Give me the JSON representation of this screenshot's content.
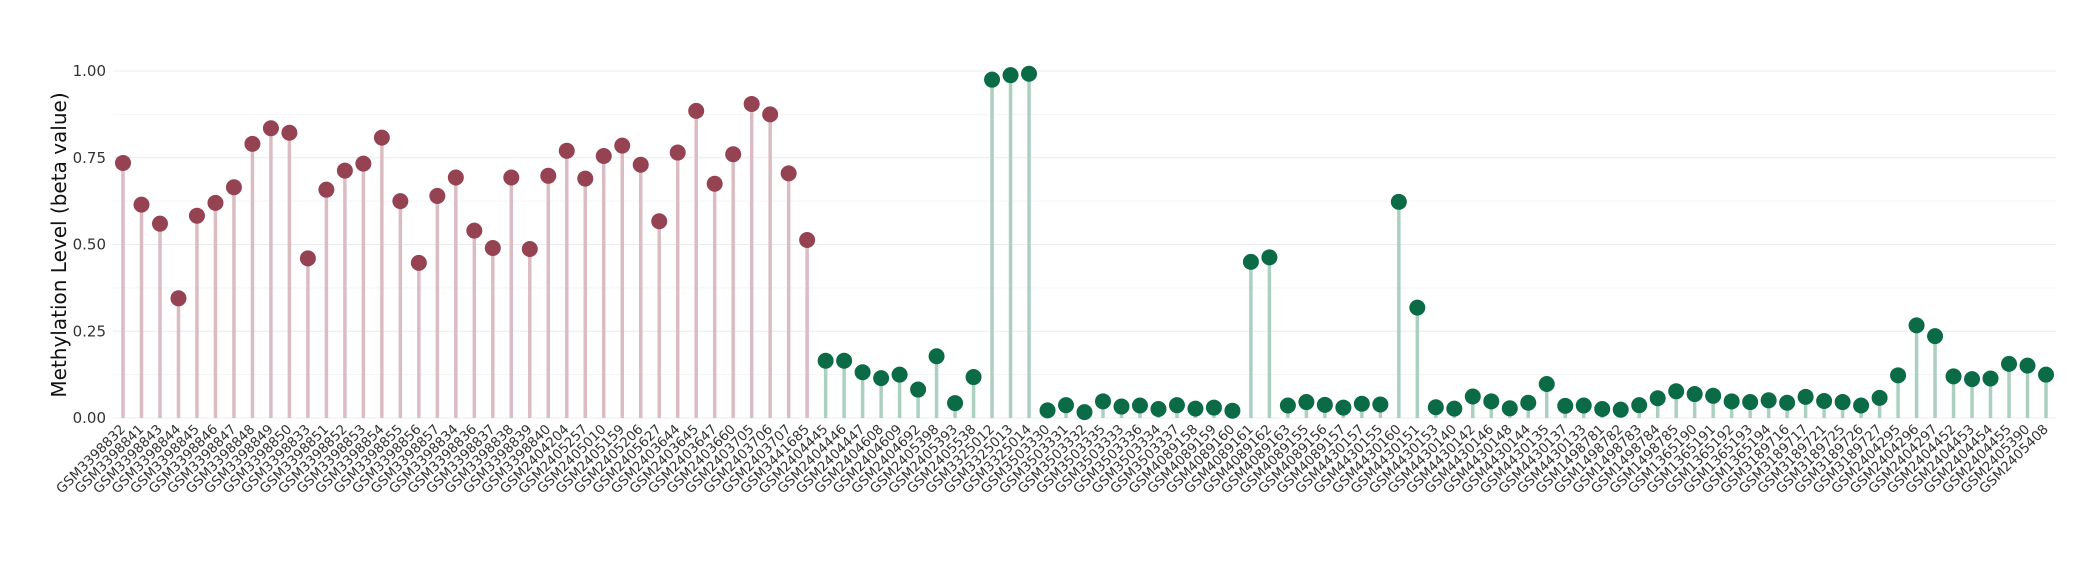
{
  "chart_data": {
    "type": "lollipop",
    "title": "",
    "xlabel": "",
    "ylabel": "Methylation Level (beta value)",
    "ylim": [
      0,
      1
    ],
    "yticks": [
      0.0,
      0.25,
      0.5,
      0.75,
      1.0
    ],
    "ytick_labels": [
      "0.00",
      "0.25",
      "0.50",
      "0.75",
      "1.00"
    ],
    "grid": true,
    "legend": "none",
    "series": [
      {
        "color": "#954253",
        "stem_color": "#dbbcc3",
        "points": [
          {
            "label": "GSM3398832",
            "value": 0.735
          },
          {
            "label": "GSM3398841",
            "value": 0.615
          },
          {
            "label": "GSM3398843",
            "value": 0.56
          },
          {
            "label": "GSM3398844",
            "value": 0.345
          },
          {
            "label": "GSM3398845",
            "value": 0.583
          },
          {
            "label": "GSM3398846",
            "value": 0.62
          },
          {
            "label": "GSM3398847",
            "value": 0.665
          },
          {
            "label": "GSM3398848",
            "value": 0.79
          },
          {
            "label": "GSM3398849",
            "value": 0.835
          },
          {
            "label": "GSM3398850",
            "value": 0.822
          },
          {
            "label": "GSM3398833",
            "value": 0.46
          },
          {
            "label": "GSM3398851",
            "value": 0.658
          },
          {
            "label": "GSM3398852",
            "value": 0.713
          },
          {
            "label": "GSM3398853",
            "value": 0.733
          },
          {
            "label": "GSM3398854",
            "value": 0.808
          },
          {
            "label": "GSM3398855",
            "value": 0.625
          },
          {
            "label": "GSM3398856",
            "value": 0.447
          },
          {
            "label": "GSM3398857",
            "value": 0.64
          },
          {
            "label": "GSM3398834",
            "value": 0.693
          },
          {
            "label": "GSM3398836",
            "value": 0.54
          },
          {
            "label": "GSM3398837",
            "value": 0.49
          },
          {
            "label": "GSM3398838",
            "value": 0.693
          },
          {
            "label": "GSM3398839",
            "value": 0.487
          },
          {
            "label": "GSM3398840",
            "value": 0.698
          },
          {
            "label": "GSM2404204",
            "value": 0.77
          },
          {
            "label": "GSM2405257",
            "value": 0.69
          },
          {
            "label": "GSM2405010",
            "value": 0.755
          },
          {
            "label": "GSM2405159",
            "value": 0.785
          },
          {
            "label": "GSM2405206",
            "value": 0.73
          },
          {
            "label": "GSM2405627",
            "value": 0.567
          },
          {
            "label": "GSM2403644",
            "value": 0.765
          },
          {
            "label": "GSM2403645",
            "value": 0.885
          },
          {
            "label": "GSM2403647",
            "value": 0.675
          },
          {
            "label": "GSM2403660",
            "value": 0.76
          },
          {
            "label": "GSM2403705",
            "value": 0.905
          },
          {
            "label": "GSM2403706",
            "value": 0.875
          },
          {
            "label": "GSM2403707",
            "value": 0.705
          },
          {
            "label": "GSM3441685",
            "value": 0.513
          }
        ]
      },
      {
        "color": "#0b6b46",
        "stem_color": "#abd0c0",
        "points": [
          {
            "label": "GSM2404445",
            "value": 0.165
          },
          {
            "label": "GSM2404446",
            "value": 0.165
          },
          {
            "label": "GSM2404447",
            "value": 0.132
          },
          {
            "label": "GSM2404608",
            "value": 0.115
          },
          {
            "label": "GSM2404609",
            "value": 0.125
          },
          {
            "label": "GSM2404692",
            "value": 0.082
          },
          {
            "label": "GSM2405398",
            "value": 0.178
          },
          {
            "label": "GSM2405393",
            "value": 0.043
          },
          {
            "label": "GSM2405538",
            "value": 0.118
          },
          {
            "label": "GSM3325012",
            "value": 0.975
          },
          {
            "label": "GSM3325013",
            "value": 0.988
          },
          {
            "label": "GSM3325014",
            "value": 0.992
          },
          {
            "label": "GSM3503330",
            "value": 0.022
          },
          {
            "label": "GSM3503331",
            "value": 0.037
          },
          {
            "label": "GSM3503332",
            "value": 0.017
          },
          {
            "label": "GSM3503335",
            "value": 0.048
          },
          {
            "label": "GSM3503333",
            "value": 0.033
          },
          {
            "label": "GSM3503336",
            "value": 0.036
          },
          {
            "label": "GSM3503334",
            "value": 0.026
          },
          {
            "label": "GSM3503337",
            "value": 0.037
          },
          {
            "label": "GSM4089158",
            "value": 0.027
          },
          {
            "label": "GSM4089159",
            "value": 0.03
          },
          {
            "label": "GSM4089160",
            "value": 0.021
          },
          {
            "label": "GSM4089161",
            "value": 0.45
          },
          {
            "label": "GSM4089162",
            "value": 0.463
          },
          {
            "label": "GSM4089163",
            "value": 0.036
          },
          {
            "label": "GSM4089155",
            "value": 0.046
          },
          {
            "label": "GSM4089156",
            "value": 0.038
          },
          {
            "label": "GSM4089157",
            "value": 0.03
          },
          {
            "label": "GSM4430157",
            "value": 0.041
          },
          {
            "label": "GSM4430155",
            "value": 0.039
          },
          {
            "label": "GSM4430160",
            "value": 0.623
          },
          {
            "label": "GSM4430151",
            "value": 0.318
          },
          {
            "label": "GSM4430153",
            "value": 0.031
          },
          {
            "label": "GSM4430140",
            "value": 0.027
          },
          {
            "label": "GSM4430142",
            "value": 0.062
          },
          {
            "label": "GSM4430146",
            "value": 0.048
          },
          {
            "label": "GSM4430148",
            "value": 0.028
          },
          {
            "label": "GSM4430144",
            "value": 0.044
          },
          {
            "label": "GSM4430135",
            "value": 0.098
          },
          {
            "label": "GSM4430137",
            "value": 0.035
          },
          {
            "label": "GSM4430133",
            "value": 0.036
          },
          {
            "label": "GSM1498781",
            "value": 0.026
          },
          {
            "label": "GSM1498782",
            "value": 0.024
          },
          {
            "label": "GSM1498783",
            "value": 0.037
          },
          {
            "label": "GSM1498784",
            "value": 0.057
          },
          {
            "label": "GSM1498785",
            "value": 0.077
          },
          {
            "label": "GSM1365190",
            "value": 0.069
          },
          {
            "label": "GSM1365191",
            "value": 0.064
          },
          {
            "label": "GSM1365192",
            "value": 0.048
          },
          {
            "label": "GSM1365193",
            "value": 0.046
          },
          {
            "label": "GSM1365194",
            "value": 0.051
          },
          {
            "label": "GSM3189716",
            "value": 0.044
          },
          {
            "label": "GSM3189717",
            "value": 0.061
          },
          {
            "label": "GSM3189721",
            "value": 0.049
          },
          {
            "label": "GSM3189725",
            "value": 0.046
          },
          {
            "label": "GSM3189726",
            "value": 0.036
          },
          {
            "label": "GSM3189727",
            "value": 0.058
          },
          {
            "label": "GSM2404295",
            "value": 0.123
          },
          {
            "label": "GSM2404296",
            "value": 0.267
          },
          {
            "label": "GSM2404297",
            "value": 0.236
          },
          {
            "label": "GSM2404452",
            "value": 0.12
          },
          {
            "label": "GSM2404453",
            "value": 0.112
          },
          {
            "label": "GSM2404454",
            "value": 0.114
          },
          {
            "label": "GSM2404455",
            "value": 0.156
          },
          {
            "label": "GSM2405390",
            "value": 0.151
          },
          {
            "label": "GSM2405408",
            "value": 0.125
          }
        ]
      }
    ]
  }
}
